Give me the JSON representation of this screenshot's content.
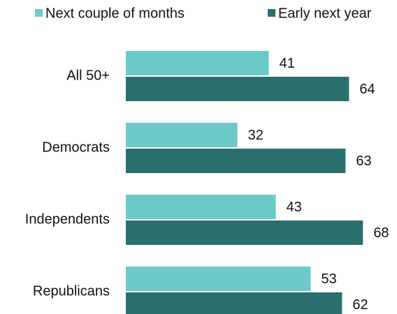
{
  "chart_data": {
    "type": "hbar",
    "categories": [
      "All 50+",
      "Democrats",
      "Independents",
      "Republicans"
    ],
    "series": [
      {
        "name": "Next couple of months",
        "color": "#6cc9c9",
        "values": [
          41,
          32,
          43,
          53
        ]
      },
      {
        "name": "Early next year",
        "color": "#2a6e6e",
        "values": [
          64,
          63,
          68,
          62
        ]
      }
    ],
    "legend": "top"
  }
}
